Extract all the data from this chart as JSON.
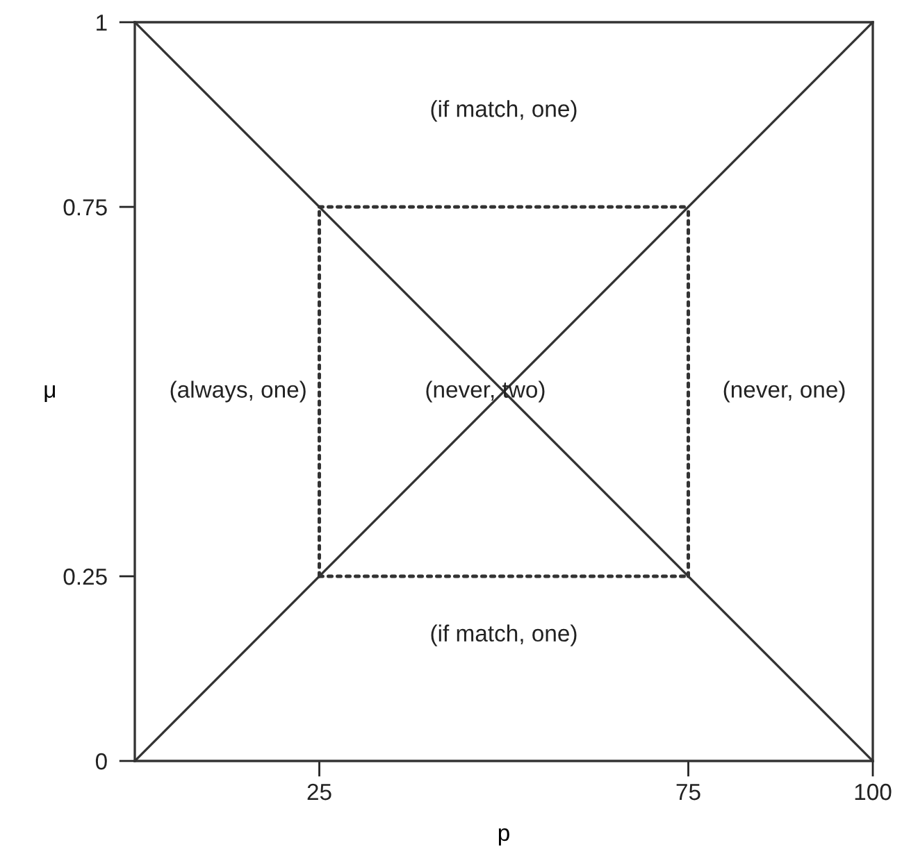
{
  "chart_data": {
    "type": "line",
    "xlabel": "p",
    "ylabel": "μ",
    "xlim": [
      0,
      100
    ],
    "ylim": [
      0,
      1
    ],
    "xticks": [
      25,
      75,
      100
    ],
    "yticks": [
      0,
      0.25,
      0.75,
      1
    ],
    "grid": false,
    "legend": false,
    "marker": "none",
    "series": [
      {
        "x": [
          0,
          100
        ],
        "values": [
          0,
          1
        ],
        "color": "#333333",
        "line_style": "solid"
      },
      {
        "x": [
          0,
          100
        ],
        "values": [
          1,
          0
        ],
        "color": "#333333",
        "line_style": "solid"
      },
      {
        "x": [
          25,
          75
        ],
        "values": [
          0.75,
          0.75
        ],
        "color": "#333333",
        "line_style": "dotted"
      },
      {
        "x": [
          25,
          75
        ],
        "values": [
          0.25,
          0.25
        ],
        "color": "#333333",
        "line_style": "dotted"
      },
      {
        "x": [
          25,
          25
        ],
        "values": [
          0.25,
          0.75
        ],
        "color": "#333333",
        "line_style": "dotted"
      },
      {
        "x": [
          75,
          75
        ],
        "values": [
          0.25,
          0.75
        ],
        "color": "#333333",
        "line_style": "dotted"
      }
    ],
    "annotations": [
      "(if match, one)",
      "(always, one)",
      "(never, two)",
      "(never, one)",
      "(if match, one)"
    ]
  }
}
